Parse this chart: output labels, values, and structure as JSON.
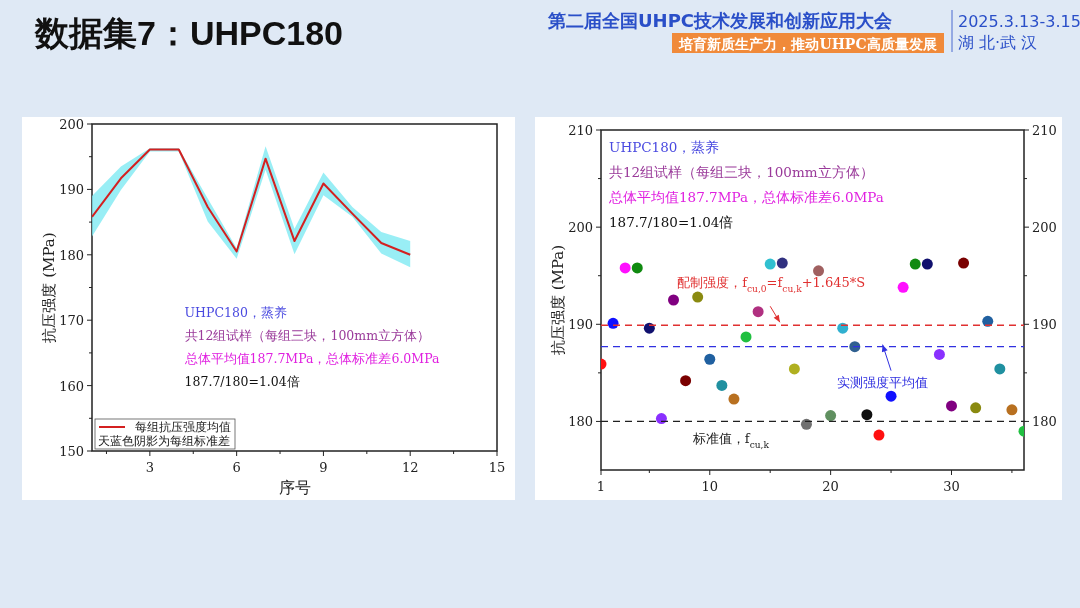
{
  "chart_data": [
    {
      "type": "line",
      "title": "数据集7：UHPC180",
      "xlabel": "序号",
      "ylabel": "抗压强度 (MPa)",
      "annotations": [
        "第二届全国UHPC技术发展和创新应用大会",
        "培育新质生产力，推动UHPC高质量发展",
        "2025.3.13-3.15",
        "湖 北·武 汉",
        "UHPC180，蒸养",
        "共12组试样（每组三块，100mm立方体）",
        "总体平均值187.7MPa，总体标准差6.0MPa",
        "187.7/180=1.04倍",
        "天蓝色阴影为每组标准差"
      ],
      "x": [
        1,
        2,
        3,
        4,
        5,
        6,
        7,
        8,
        9,
        10,
        11,
        12
      ],
      "xlim": [
        1,
        15
      ],
      "xticks": [
        {
          "value": 1.5,
          "label": null
        },
        3,
        {
          "value": 4.5,
          "label": null
        },
        6,
        {
          "value": 7.5,
          "label": null
        },
        9,
        {
          "value": 10.5,
          "label": null
        },
        12,
        {
          "value": 13.5,
          "label": null
        },
        15
      ],
      "ylim": [
        150,
        200
      ],
      "yticks": [
        150,
        {
          "value": 155,
          "label": null
        },
        160,
        {
          "value": 165,
          "label": null
        },
        170,
        {
          "value": 175,
          "label": null
        },
        180,
        {
          "value": 185,
          "label": null
        },
        190,
        {
          "value": 195,
          "label": null
        },
        200
      ],
      "series": [
        {
          "name": "每组抗压强度均值",
          "color": "#d42020",
          "values": [
            185.8,
            191.7,
            196.1,
            196.1,
            187.3,
            180.5,
            194.7,
            182.1,
            190.9,
            186.3,
            181.8,
            180.0
          ],
          "lower": [
            182.8,
            189.9,
            195.8,
            195.8,
            185.1,
            179.4,
            193.0,
            180.1,
            189.1,
            185.8,
            180.2,
            178.1
          ],
          "upper": [
            189.0,
            193.5,
            196.3,
            196.3,
            188.6,
            181.0,
            196.6,
            184.0,
            192.6,
            187.3,
            183.5,
            182.1
          ]
        }
      ],
      "legend": "bottom left",
      "grid": false,
      "marker": "none",
      "line_style": "solid"
    },
    {
      "type": "scatter",
      "ylabel": "抗压强度 (MPa)",
      "annotations": [
        "UHPC180，蒸养",
        "共12组试样（每组三块，100mm立方体）",
        "总体平均值187.7MPa，总体标准差6.0MPa",
        "187.7/180=1.04倍"
      ],
      "x": [
        1,
        2,
        3,
        4,
        5,
        6,
        7,
        8,
        9,
        10,
        11,
        12,
        13,
        14,
        15,
        16,
        17,
        18,
        19,
        20,
        21,
        22,
        23,
        24,
        25,
        26,
        27,
        28,
        29,
        30,
        31,
        32,
        33,
        34,
        35,
        36
      ],
      "values": [
        185.9,
        190.1,
        195.8,
        195.8,
        189.6,
        180.3,
        192.5,
        184.2,
        192.8,
        186.4,
        183.7,
        182.3,
        188.7,
        191.3,
        196.2,
        196.3,
        185.4,
        179.7,
        195.5,
        180.6,
        189.6,
        187.7,
        180.7,
        178.6,
        182.6,
        193.8,
        196.2,
        196.2,
        186.9,
        181.6,
        196.3,
        181.4,
        190.3,
        185.4,
        181.2,
        179.0
      ],
      "colors": [
        "#ff1010",
        "#1010ff",
        "#ff10ff",
        "#108a10",
        "#10106e",
        "#8a30ff",
        "#800080",
        "#7a0000",
        "#8a8a10",
        "#2060a0",
        "#2090a0",
        "#b87020",
        "#20c040",
        "#b03080",
        "#30c0d0",
        "#303080",
        "#b0b020",
        "#707070",
        "#a06060",
        "#609060",
        "#30b0d0",
        "#306090",
        "#101010",
        "#ff1010",
        "#1010ff",
        "#ff10ff",
        "#108a10",
        "#10106e",
        "#8a30ff",
        "#800080",
        "#7a0000",
        "#8a8a10",
        "#2060a0",
        "#2090a0",
        "#b87020",
        "#20c040"
      ],
      "xlim": [
        1,
        36
      ],
      "xticks": [
        1,
        {
          "value": 5,
          "label": null
        },
        10,
        {
          "value": 15,
          "label": null
        },
        20,
        {
          "value": 25,
          "label": null
        },
        30,
        {
          "value": 35,
          "label": null
        }
      ],
      "ylim": [
        175,
        210
      ],
      "yticks": [
        180,
        {
          "value": 185,
          "label": null
        },
        190,
        {
          "value": 195,
          "label": null
        },
        200,
        {
          "value": 205,
          "label": null
        },
        210
      ],
      "y2lim": [
        175,
        210
      ],
      "y2ticks": [
        180,
        {
          "value": 185,
          "label": null
        },
        190,
        {
          "value": 195,
          "label": null
        },
        200,
        {
          "value": 205,
          "label": null
        },
        210
      ],
      "ref_lines": [
        {
          "axis": "y",
          "value": 189.9,
          "label": "配制强度，f$_{cu,0}$=f$_{cu,k}$+1.645*S",
          "color": "#e03030",
          "line_style": "dashed"
        },
        {
          "axis": "y",
          "value": 187.7,
          "label": "实测强度平均值",
          "color": "#3030e0",
          "line_style": "dashed"
        },
        {
          "axis": "y",
          "value": 180,
          "label": "标准值，f$_{cu,k}$",
          "color": "#202020",
          "line_style": "dashed"
        }
      ],
      "marker": "circle",
      "grid": false
    }
  ]
}
